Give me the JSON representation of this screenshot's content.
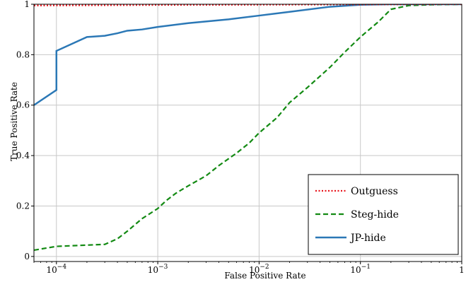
{
  "chart_data": {
    "type": "line",
    "title": "",
    "xlabel": "False Positive Rate",
    "ylabel": "True Positive Rate",
    "xscale": "log",
    "xlim": [
      6e-05,
      1
    ],
    "ylim": [
      -0.02,
      1.0
    ],
    "grid": true,
    "legend_position": "bottom-right",
    "x_ticks": [
      {
        "value": 0.0001,
        "base": "10",
        "exp": "−4"
      },
      {
        "value": 0.001,
        "base": "10",
        "exp": "−3"
      },
      {
        "value": 0.01,
        "base": "10",
        "exp": "−2"
      },
      {
        "value": 0.1,
        "base": "10",
        "exp": "−1"
      },
      {
        "value": 1,
        "base": "1",
        "exp": ""
      }
    ],
    "y_ticks": [
      {
        "value": 0,
        "label": "0"
      },
      {
        "value": 0.2,
        "label": "0.2"
      },
      {
        "value": 0.4,
        "label": "0.4"
      },
      {
        "value": 0.6,
        "label": "0.6"
      },
      {
        "value": 0.8,
        "label": "0.8"
      },
      {
        "value": 1,
        "label": "1"
      }
    ],
    "series": [
      {
        "name": "Outguess",
        "color": "#e8141c",
        "style": "dotted",
        "x": [
          6e-05,
          0.001,
          0.01,
          0.1,
          1
        ],
        "y": [
          0.995,
          0.997,
          0.998,
          0.999,
          1.0
        ]
      },
      {
        "name": "Steg-hide",
        "color": "#138a13",
        "style": "dashed",
        "x": [
          6e-05,
          0.0001,
          0.0003,
          0.0004,
          0.0005,
          0.0007,
          0.001,
          0.0012,
          0.0015,
          0.002,
          0.003,
          0.004,
          0.006,
          0.008,
          0.01,
          0.015,
          0.02,
          0.03,
          0.05,
          0.07,
          0.1,
          0.15,
          0.2,
          0.3,
          0.5,
          1
        ],
        "y": [
          0.025,
          0.04,
          0.048,
          0.07,
          0.1,
          0.15,
          0.19,
          0.22,
          0.25,
          0.28,
          0.32,
          0.36,
          0.41,
          0.45,
          0.49,
          0.55,
          0.61,
          0.67,
          0.75,
          0.81,
          0.87,
          0.93,
          0.98,
          0.995,
          0.998,
          1.0
        ]
      },
      {
        "name": "JP-hide",
        "color": "#2b78b6",
        "style": "solid",
        "x": [
          6e-05,
          0.0001,
          0.0001,
          0.0002,
          0.0003,
          0.0004,
          0.0005,
          0.0007,
          0.001,
          0.002,
          0.005,
          0.01,
          0.02,
          0.05,
          0.1,
          0.2,
          0.5,
          1
        ],
        "y": [
          0.6,
          0.66,
          0.815,
          0.87,
          0.875,
          0.885,
          0.895,
          0.9,
          0.91,
          0.925,
          0.94,
          0.955,
          0.97,
          0.99,
          0.998,
          1.0,
          1.0,
          1.0
        ]
      }
    ]
  }
}
